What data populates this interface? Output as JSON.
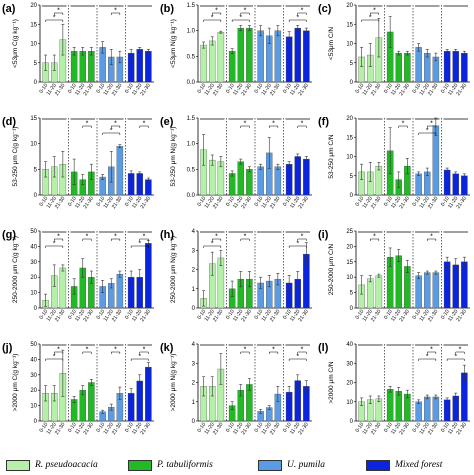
{
  "legend": [
    {
      "label": "R. pseudoacacia",
      "color": "#b4f0a8"
    },
    {
      "label": "P. tabuliformis",
      "color": "#22b826"
    },
    {
      "label": "U. pumila",
      "color": "#5b9be3"
    },
    {
      "label": "Mixed forest",
      "color": "#0b24de"
    }
  ],
  "xticks": [
    "0-10",
    "11-20",
    "21-30"
  ],
  "chart_data": [
    {
      "type": "bar",
      "panel_label": "(a)",
      "ylabel": "<53μm C(g kg⁻¹)",
      "yticks": [
        0,
        5,
        10,
        15,
        20
      ],
      "ylim": [
        0,
        20
      ],
      "groups": [
        {
          "values": [
            5,
            5,
            11
          ],
          "errors": [
            2,
            2,
            4
          ],
          "stars": [
            {
              "text": "*",
              "level": 1
            },
            {
              "text": "*",
              "level": 0
            }
          ]
        },
        {
          "values": [
            8,
            8,
            8
          ],
          "errors": [
            1,
            1,
            1
          ],
          "stars": []
        },
        {
          "values": [
            9,
            6.5,
            6.5
          ],
          "errors": [
            1.5,
            2,
            1.5
          ],
          "stars": [
            {
              "text": "*",
              "level": 0
            }
          ]
        },
        {
          "values": [
            7.5,
            8.5,
            8
          ],
          "errors": [
            1,
            0.5,
            0.5
          ],
          "stars": []
        }
      ]
    },
    {
      "type": "bar",
      "panel_label": "(b)",
      "ylabel": "<53μm N(g kg⁻¹)",
      "yticks": [
        0.0,
        0.5,
        1.0,
        1.5
      ],
      "ylim": [
        0,
        1.5
      ],
      "groups": [
        {
          "values": [
            0.72,
            0.8,
            0.97
          ],
          "errors": [
            0.06,
            0.08,
            0.02
          ],
          "stars": [
            {
              "text": "*",
              "level": 1
            },
            {
              "text": "*",
              "level": 0
            }
          ]
        },
        {
          "values": [
            0.6,
            1.05,
            1.05
          ],
          "errors": [
            0.05,
            0.05,
            0.05
          ],
          "stars": [
            {
              "text": "*",
              "level": 1
            },
            {
              "text": "*",
              "level": 0
            }
          ]
        },
        {
          "values": [
            1.0,
            0.9,
            1.0
          ],
          "errors": [
            0.1,
            0.15,
            0.1
          ],
          "stars": []
        },
        {
          "values": [
            0.88,
            1.05,
            1.0
          ],
          "errors": [
            0.1,
            0.05,
            0.05
          ],
          "stars": [
            {
              "text": "*",
              "level": 1
            },
            {
              "text": "*",
              "level": 0
            }
          ]
        }
      ]
    },
    {
      "type": "bar",
      "panel_label": "(c)",
      "ylabel": "<53μm C/N",
      "yticks": [
        0,
        5,
        10,
        15,
        20
      ],
      "ylim": [
        0,
        20
      ],
      "groups": [
        {
          "values": [
            6.5,
            7,
            11.5
          ],
          "errors": [
            2.5,
            3,
            5
          ],
          "stars": [
            {
              "text": "*",
              "level": 1
            },
            {
              "text": "*",
              "level": 0
            }
          ]
        },
        {
          "values": [
            13,
            7.5,
            7.5
          ],
          "errors": [
            4,
            0.5,
            0.5
          ],
          "stars": []
        },
        {
          "values": [
            9,
            7.5,
            6.5
          ],
          "errors": [
            1,
            1,
            1
          ],
          "stars": []
        },
        {
          "values": [
            8,
            8,
            7.5
          ],
          "errors": [
            0.5,
            0.5,
            0.5
          ],
          "stars": []
        }
      ]
    },
    {
      "type": "bar",
      "panel_label": "(d)",
      "ylabel": "53-250 μm C(g kg⁻¹)",
      "yticks": [
        0,
        5,
        10,
        15
      ],
      "ylim": [
        0,
        15
      ],
      "groups": [
        {
          "values": [
            5,
            5.5,
            6
          ],
          "errors": [
            1.5,
            2,
            2.5
          ],
          "stars": []
        },
        {
          "values": [
            4.5,
            3,
            4.5
          ],
          "errors": [
            2.5,
            1,
            1.5
          ],
          "stars": [
            {
              "text": "*",
              "level": 0
            }
          ]
        },
        {
          "values": [
            3.5,
            5.5,
            9.5
          ],
          "errors": [
            0.5,
            3,
            0.3
          ],
          "stars": [
            {
              "text": "*",
              "level": 1
            },
            {
              "text": "*",
              "level": 0
            }
          ]
        },
        {
          "values": [
            4.2,
            4.2,
            3
          ],
          "errors": [
            0.5,
            0.3,
            0.3
          ],
          "stars": [
            {
              "text": "*",
              "level": 0
            }
          ]
        }
      ]
    },
    {
      "type": "bar",
      "panel_label": "(e)",
      "ylabel": "53-250 μm N(g kg⁻¹)",
      "yticks": [
        0.0,
        0.5,
        1.0,
        1.5
      ],
      "ylim": [
        0,
        1.5
      ],
      "groups": [
        {
          "values": [
            0.88,
            0.68,
            0.65
          ],
          "errors": [
            0.3,
            0.1,
            0.1
          ],
          "stars": []
        },
        {
          "values": [
            0.42,
            0.65,
            0.5
          ],
          "errors": [
            0.05,
            0.05,
            0.05
          ],
          "stars": [
            {
              "text": "*",
              "level": 0
            }
          ]
        },
        {
          "values": [
            0.55,
            0.82,
            0.55
          ],
          "errors": [
            0.05,
            0.3,
            0.05
          ],
          "stars": [
            {
              "text": "*",
              "level": 0
            }
          ]
        },
        {
          "values": [
            0.6,
            0.75,
            0.7
          ],
          "errors": [
            0.05,
            0.05,
            0.05
          ],
          "stars": [
            {
              "text": "*",
              "level": 0
            }
          ]
        }
      ]
    },
    {
      "type": "bar",
      "panel_label": "(f)",
      "ylabel": "53-250 μm C/N",
      "yticks": [
        0,
        5,
        10,
        15,
        20
      ],
      "ylim": [
        0,
        20
      ],
      "groups": [
        {
          "values": [
            6,
            6,
            7.5
          ],
          "errors": [
            2,
            2.5,
            1
          ],
          "stars": []
        },
        {
          "values": [
            11.5,
            4,
            7.5
          ],
          "errors": [
            6,
            2,
            2
          ],
          "stars": [
            {
              "text": "*",
              "level": 0
            }
          ]
        },
        {
          "values": [
            5.5,
            6,
            18
          ],
          "errors": [
            0.5,
            1,
            2.5
          ],
          "stars": [
            {
              "text": "*",
              "level": 1
            },
            {
              "text": "*",
              "level": 0
            }
          ]
        },
        {
          "values": [
            6.5,
            5.5,
            5
          ],
          "errors": [
            0.5,
            0.5,
            0.5
          ],
          "stars": []
        }
      ]
    },
    {
      "type": "bar",
      "panel_label": "(g)",
      "ylabel": "250-2000 μm C(g kg⁻¹)",
      "yticks": [
        0,
        10,
        20,
        30,
        40,
        50
      ],
      "ylim": [
        0,
        50
      ],
      "groups": [
        {
          "values": [
            5,
            21,
            26
          ],
          "errors": [
            4,
            7,
            2
          ],
          "stars": [
            {
              "text": "*",
              "level": 1
            },
            {
              "text": "*",
              "level": 0
            }
          ]
        },
        {
          "values": [
            14,
            26,
            20
          ],
          "errors": [
            5,
            6,
            4
          ],
          "stars": [
            {
              "text": "*",
              "level": 0
            }
          ]
        },
        {
          "values": [
            14,
            16,
            22
          ],
          "errors": [
            4,
            3,
            2
          ],
          "stars": [
            {
              "text": "*",
              "level": 0
            }
          ]
        },
        {
          "values": [
            20,
            20,
            42
          ],
          "errors": [
            4,
            5,
            2
          ],
          "stars": [
            {
              "text": "*",
              "level": 1
            },
            {
              "text": "*",
              "level": 0
            }
          ]
        }
      ]
    },
    {
      "type": "bar",
      "panel_label": "(h)",
      "ylabel": "250-2000 μm N(g kg⁻¹)",
      "yticks": [
        0,
        1,
        2,
        3,
        4
      ],
      "ylim": [
        0,
        4
      ],
      "groups": [
        {
          "values": [
            0.5,
            2.3,
            2.6
          ],
          "errors": [
            0.4,
            0.6,
            0.4
          ],
          "stars": [
            {
              "text": "*",
              "level": 1
            },
            {
              "text": "*",
              "level": 0
            }
          ]
        },
        {
          "values": [
            1.0,
            1.5,
            1.5
          ],
          "errors": [
            0.4,
            0.4,
            0.4
          ],
          "stars": [
            {
              "text": "*",
              "level": 0
            }
          ]
        },
        {
          "values": [
            1.3,
            1.4,
            1.5
          ],
          "errors": [
            0.3,
            0.3,
            0.3
          ],
          "stars": []
        },
        {
          "values": [
            1.3,
            1.5,
            2.8
          ],
          "errors": [
            0.4,
            0.4,
            0.6
          ],
          "stars": [
            {
              "text": "*",
              "level": 1
            },
            {
              "text": "*",
              "level": 0
            }
          ]
        }
      ]
    },
    {
      "type": "bar",
      "panel_label": "(i)",
      "ylabel": "250-2000 μm C/N",
      "yticks": [
        0,
        5,
        10,
        15,
        20,
        25
      ],
      "ylim": [
        0,
        25
      ],
      "groups": [
        {
          "values": [
            7.5,
            9.5,
            10.5
          ],
          "errors": [
            3,
            1,
            0.5
          ],
          "stars": [
            {
              "text": "*",
              "level": 0
            }
          ]
        },
        {
          "values": [
            16.5,
            17,
            13.5
          ],
          "errors": [
            3,
            2,
            2
          ],
          "stars": []
        },
        {
          "values": [
            10.5,
            11.5,
            11.5
          ],
          "errors": [
            1,
            0.5,
            0.5
          ],
          "stars": [
            {
              "text": "*",
              "level": 0
            }
          ]
        },
        {
          "values": [
            15,
            14,
            15
          ],
          "errors": [
            1.5,
            2,
            1.5
          ],
          "stars": []
        }
      ]
    },
    {
      "type": "bar",
      "panel_label": "(j)",
      "ylabel": ">2000 μm C(g kg⁻¹)",
      "yticks": [
        0,
        10,
        20,
        30,
        40,
        50
      ],
      "ylim": [
        0,
        50
      ],
      "groups": [
        {
          "values": [
            18,
            18,
            31
          ],
          "errors": [
            5,
            5,
            15
          ],
          "stars": [
            {
              "text": "*",
              "level": 1
            },
            {
              "text": "*",
              "level": 0
            }
          ]
        },
        {
          "values": [
            14,
            20,
            25
          ],
          "errors": [
            2,
            3,
            2
          ],
          "stars": [
            {
              "text": "*",
              "level": 0
            }
          ]
        },
        {
          "values": [
            6,
            9,
            18
          ],
          "errors": [
            1,
            2,
            4
          ],
          "stars": [
            {
              "text": "*",
              "level": 0
            }
          ]
        },
        {
          "values": [
            18,
            26,
            35
          ],
          "errors": [
            3,
            4,
            3
          ],
          "stars": [
            {
              "text": "*",
              "level": 1
            },
            {
              "text": "*",
              "level": 0
            }
          ]
        }
      ]
    },
    {
      "type": "bar",
      "panel_label": "(k)",
      "ylabel": ">2000 μm N(g kg⁻¹)",
      "yticks": [
        0,
        1,
        2,
        3,
        4
      ],
      "ylim": [
        0,
        4
      ],
      "groups": [
        {
          "values": [
            1.8,
            1.8,
            2.7
          ],
          "errors": [
            0.5,
            0.5,
            0.8
          ],
          "stars": []
        },
        {
          "values": [
            0.8,
            1.6,
            1.9
          ],
          "errors": [
            0.2,
            0.3,
            0.3
          ],
          "stars": [
            {
              "text": "*",
              "level": 0
            }
          ]
        },
        {
          "values": [
            0.5,
            0.7,
            1.4
          ],
          "errors": [
            0.1,
            0.1,
            0.4
          ],
          "stars": [
            {
              "text": "*",
              "level": 0
            }
          ]
        },
        {
          "values": [
            1.5,
            2.1,
            1.8
          ],
          "errors": [
            0.3,
            0.3,
            0.3
          ],
          "stars": [
            {
              "text": "*",
              "level": 1
            },
            {
              "text": "*",
              "level": 0
            }
          ]
        }
      ]
    },
    {
      "type": "bar",
      "panel_label": "(l)",
      "ylabel": ">2000 μm C/N",
      "yticks": [
        0,
        10,
        20,
        30,
        40
      ],
      "ylim": [
        0,
        40
      ],
      "groups": [
        {
          "values": [
            10,
            11,
            11.5
          ],
          "errors": [
            2,
            2,
            1.5
          ],
          "stars": []
        },
        {
          "values": [
            16.5,
            15.5,
            14
          ],
          "errors": [
            1.5,
            2,
            2
          ],
          "stars": []
        },
        {
          "values": [
            10,
            12.5,
            12.5
          ],
          "errors": [
            1,
            1,
            1
          ],
          "stars": [
            {
              "text": "*",
              "level": 1
            },
            {
              "text": "*",
              "level": 0
            }
          ]
        },
        {
          "values": [
            11,
            13,
            25
          ],
          "errors": [
            1,
            1.5,
            4
          ],
          "stars": [
            {
              "text": "*",
              "level": 1
            },
            {
              "text": "*",
              "level": 0
            }
          ]
        }
      ]
    }
  ]
}
